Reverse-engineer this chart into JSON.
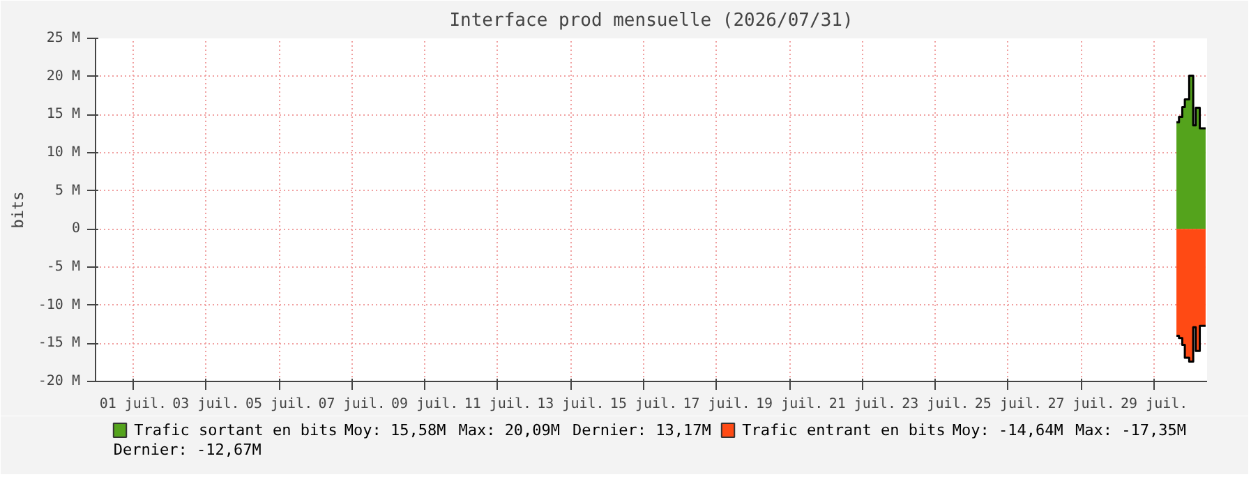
{
  "chart_data": {
    "type": "area",
    "title": "Interface prod mensuelle (2026/07/31)",
    "ylabel": "bits",
    "x": [
      30.11,
      30.18,
      30.27,
      30.34,
      30.46,
      30.57,
      30.64,
      30.75,
      30.91
    ],
    "series": [
      {
        "name": "Trafic sortant en bits",
        "color": "#54a31c",
        "values": [
          14.0,
          14.7,
          16.0,
          17.0,
          20.1,
          13.6,
          15.9,
          13.2,
          13.2
        ]
      },
      {
        "name": "Trafic entrant en bits",
        "color": "#ff4a14",
        "values": [
          -14.0,
          -14.3,
          -15.2,
          -16.9,
          -17.4,
          -12.9,
          -16.0,
          -12.7,
          -12.7
        ]
      }
    ],
    "annotations": [
      "Moy: 15,58M",
      "Max: 20,09M",
      "Dernier: 13,17M",
      "Moy: -14,64M",
      "Max: -17,35M",
      "Dernier: -12,67M"
    ],
    "xlim": [
      0.47,
      30.95
    ],
    "xticks": [
      {
        "value": 1.5,
        "label": "01 juil."
      },
      {
        "value": 3.5,
        "label": "03 juil."
      },
      {
        "value": 5.5,
        "label": "05 juil."
      },
      {
        "value": 7.5,
        "label": "07 juil."
      },
      {
        "value": 9.5,
        "label": "09 juil."
      },
      {
        "value": 11.5,
        "label": "11 juil."
      },
      {
        "value": 13.5,
        "label": "13 juil."
      },
      {
        "value": 15.5,
        "label": "15 juil."
      },
      {
        "value": 17.5,
        "label": "17 juil."
      },
      {
        "value": 19.5,
        "label": "19 juil."
      },
      {
        "value": 21.5,
        "label": "21 juil."
      },
      {
        "value": 23.5,
        "label": "23 juil."
      },
      {
        "value": 25.5,
        "label": "25 juil."
      },
      {
        "value": 27.5,
        "label": "27 juil."
      },
      {
        "value": 29.5,
        "label": "29 juil."
      }
    ],
    "ylim": [
      -20,
      25
    ],
    "yticks": [
      {
        "value": -20,
        "label": "-20 M"
      },
      {
        "value": -15,
        "label": "-15 M"
      },
      {
        "value": -10,
        "label": "-10 M"
      },
      {
        "value": -5,
        "label": "-5 M"
      },
      0,
      {
        "value": 5,
        "label": "5 M"
      },
      {
        "value": 10,
        "label": "10 M"
      },
      {
        "value": 15,
        "label": "15 M"
      },
      {
        "value": 20,
        "label": "20 M"
      },
      {
        "value": 25,
        "label": "25 M"
      }
    ],
    "grid": true,
    "legend": "bottom"
  }
}
